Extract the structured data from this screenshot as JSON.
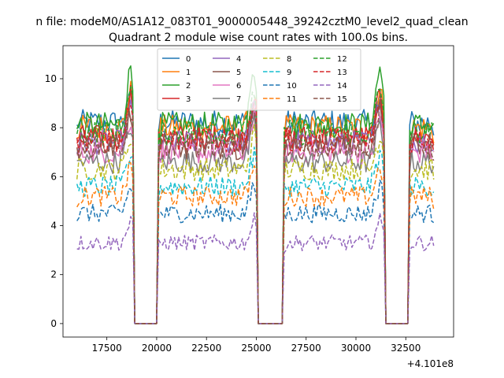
{
  "figure": {
    "suptitle": "n file: modeM0/AS1A12_083T01_9000005448_39242cztM0_level2_quad_clean",
    "title": "Quadrant 2 module wise count rates with 100.0s bins."
  },
  "chart_data": {
    "type": "line",
    "title": "Quadrant 2 module wise count rates with 100.0s bins.",
    "xlabel": "",
    "ylabel": "",
    "x_offset_label": "+4.101e8",
    "x_range": [
      15300,
      34900
    ],
    "ylim": [
      -0.55,
      11.35
    ],
    "x_ticks": [
      17500,
      20000,
      22500,
      25000,
      27500,
      30000,
      32500
    ],
    "x_tick_labels": [
      "17500",
      "20000",
      "22500",
      "25000",
      "27500",
      "30000",
      "32500"
    ],
    "y_ticks": [
      0,
      2,
      4,
      6,
      8,
      10
    ],
    "y_tick_labels": [
      "0",
      "2",
      "4",
      "6",
      "8",
      "10"
    ],
    "grid": false,
    "legend_position": "top-center",
    "segments": [
      {
        "x_start": 16000,
        "x_end": 18800
      },
      {
        "x_start": 20100,
        "x_end": 25000
      },
      {
        "x_start": 26400,
        "x_end": 31400
      },
      {
        "x_start": 32700,
        "x_end": 33900
      }
    ],
    "gaps": [
      {
        "x_start": 18900,
        "x_end": 20000
      },
      {
        "x_start": 25100,
        "x_end": 26300
      },
      {
        "x_start": 31500,
        "x_end": 32600
      }
    ],
    "series": [
      {
        "name": "0",
        "color": "#1f77b4",
        "dash": "solid",
        "level": 8.2,
        "peak": 9.2
      },
      {
        "name": "1",
        "color": "#ff7f0e",
        "dash": "solid",
        "level": 8.0,
        "peak": 9.6
      },
      {
        "name": "2",
        "color": "#2ca02c",
        "dash": "solid",
        "level": 8.1,
        "peak": 10.8
      },
      {
        "name": "3",
        "color": "#d62728",
        "dash": "solid",
        "level": 7.6,
        "peak": 9.5
      },
      {
        "name": "4",
        "color": "#9467bd",
        "dash": "solid",
        "level": 7.4,
        "peak": 9.0
      },
      {
        "name": "5",
        "color": "#8c564b",
        "dash": "solid",
        "level": 7.2,
        "peak": 8.9
      },
      {
        "name": "6",
        "color": "#e377c2",
        "dash": "solid",
        "level": 7.0,
        "peak": 8.6
      },
      {
        "name": "7",
        "color": "#7f7f7f",
        "dash": "solid",
        "level": 6.6,
        "peak": 8.3
      },
      {
        "name": "8",
        "color": "#bcbd22",
        "dash": "dashed",
        "level": 6.3,
        "peak": 7.9
      },
      {
        "name": "9",
        "color": "#17becf",
        "dash": "dashed",
        "level": 5.6,
        "peak": 7.1
      },
      {
        "name": "10",
        "color": "#1f77b4",
        "dash": "dashed",
        "level": 4.5,
        "peak": 5.8
      },
      {
        "name": "11",
        "color": "#ff7f0e",
        "dash": "dashed",
        "level": 5.2,
        "peak": 6.6
      },
      {
        "name": "12",
        "color": "#2ca02c",
        "dash": "dashed",
        "level": 7.8,
        "peak": 9.8
      },
      {
        "name": "13",
        "color": "#d62728",
        "dash": "dashed",
        "level": 7.5,
        "peak": 9.2
      },
      {
        "name": "14",
        "color": "#9467bd",
        "dash": "dashed",
        "level": 3.3,
        "peak": 4.3
      },
      {
        "name": "15",
        "color": "#8c564b",
        "dash": "dashed",
        "level": 7.3,
        "peak": 8.8
      }
    ]
  }
}
